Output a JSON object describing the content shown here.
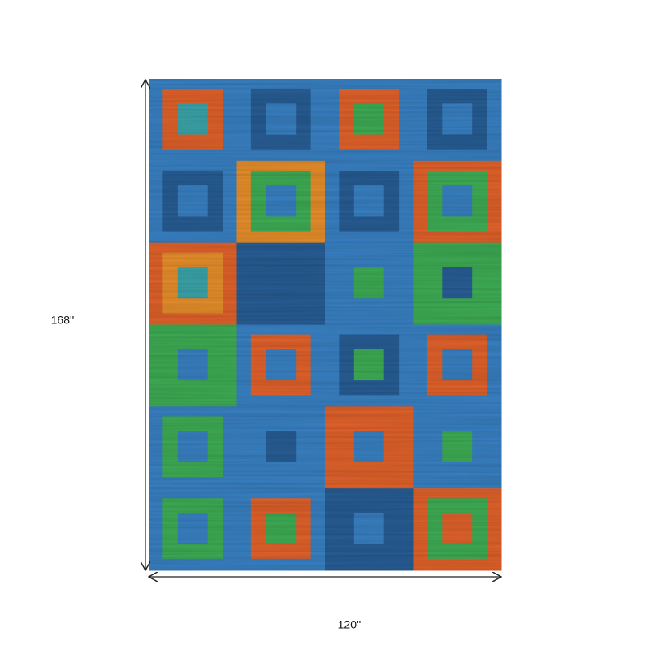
{
  "dimensions": {
    "height": "168''",
    "width": "120''"
  }
}
